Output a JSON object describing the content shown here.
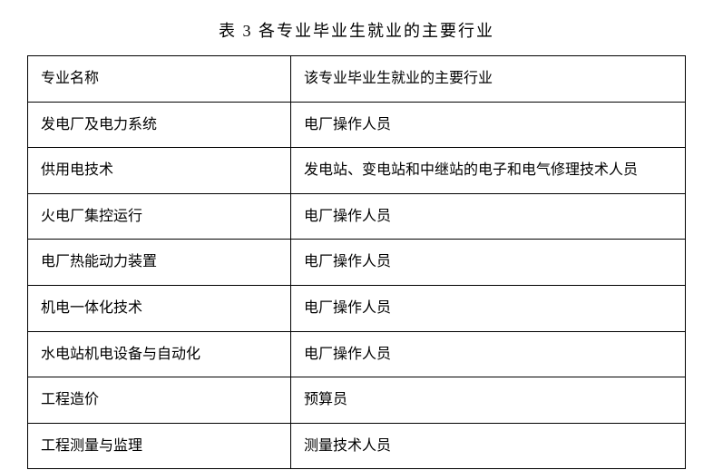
{
  "title": "表 3   各专业毕业生就业的主要行业",
  "table": {
    "type": "table",
    "columns": [
      {
        "label": "专业名称",
        "width_pct": 40,
        "align": "left"
      },
      {
        "label": "该专业毕业生就业的主要行业",
        "width_pct": 60,
        "align": "left"
      }
    ],
    "rows": [
      [
        "发电厂及电力系统",
        "电厂操作人员"
      ],
      [
        "供用电技术",
        "发电站、变电站和中继站的电子和电气修理技术人员"
      ],
      [
        "火电厂集控运行",
        "电厂操作人员"
      ],
      [
        "电厂热能动力装置",
        "电厂操作人员"
      ],
      [
        "机电一体化技术",
        "电厂操作人员"
      ],
      [
        "水电站机电设备与自动化",
        "电厂操作人员"
      ],
      [
        "工程造价",
        "预算员"
      ],
      [
        "工程测量与监理",
        "测量技术人员"
      ]
    ],
    "border_color": "#000000",
    "background_color": "#ffffff",
    "font_size": 16,
    "title_fontsize": 18,
    "text_color": "#000000",
    "cell_padding": 12,
    "font_family": "SimSun"
  }
}
